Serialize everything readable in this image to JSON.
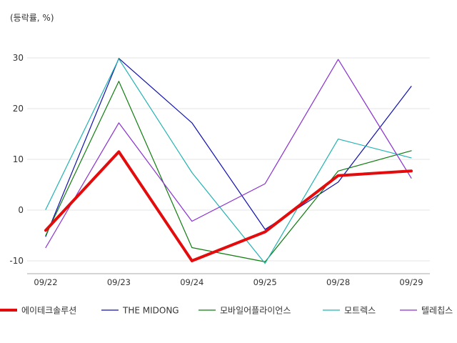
{
  "chart_data": {
    "type": "line",
    "unit_label": "(등락률, %)",
    "categories": [
      "09/22",
      "09/23",
      "09/24",
      "09/25",
      "09/28",
      "09/29"
    ],
    "yticks": [
      -10,
      0,
      10,
      20,
      30
    ],
    "ylim": [
      -12.5,
      35
    ],
    "grid": true,
    "legend_position": "bottom",
    "series": [
      {
        "name": "에이테크솔루션",
        "color": "#e30b0b",
        "width": 4,
        "values": [
          -4,
          11.5,
          -10,
          -4.3,
          6.8,
          7.7
        ]
      },
      {
        "name": "THE MIDONG",
        "color": "#1010b0",
        "width": 1.2,
        "values": [
          -5.2,
          29.9,
          17.2,
          -3.8,
          5.5,
          24.4
        ]
      },
      {
        "name": "모바일어플라이언스",
        "color": "#0f7d0f",
        "width": 1.2,
        "values": [
          -5,
          25.4,
          -7.4,
          -10.2,
          7.7,
          11.7
        ]
      },
      {
        "name": "모트렉스",
        "color": "#22b2b2",
        "width": 1.2,
        "values": [
          0.1,
          29.8,
          7.4,
          -10.5,
          14,
          10.3
        ]
      },
      {
        "name": "텔레칩스",
        "color": "#8a2fd0",
        "width": 1.2,
        "values": [
          -7.4,
          17.2,
          -2.2,
          5.2,
          29.7,
          6.3
        ]
      }
    ]
  }
}
